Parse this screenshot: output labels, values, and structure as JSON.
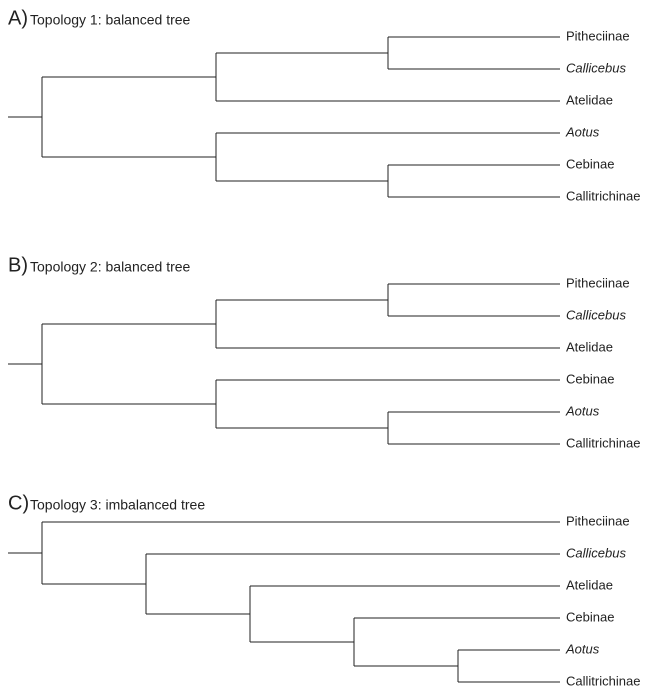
{
  "panels": [
    {
      "letter": "A)",
      "title": "Topology 1: balanced tree",
      "leaves": [
        {
          "label": "Pitheciinae"
        },
        {
          "label": "Callicebus",
          "italic": true
        },
        {
          "label": "Atelidae"
        },
        {
          "label": "Aotus",
          "italic": true
        },
        {
          "label": "Cebinae"
        },
        {
          "label": "Callitrichinae"
        }
      ]
    },
    {
      "letter": "B)",
      "title": "Topology 2: balanced tree",
      "leaves": [
        {
          "label": "Pitheciinae"
        },
        {
          "label": "Callicebus",
          "italic": true
        },
        {
          "label": "Atelidae"
        },
        {
          "label": "Cebinae"
        },
        {
          "label": "Aotus",
          "italic": true
        },
        {
          "label": "Callitrichinae"
        }
      ]
    },
    {
      "letter": "C)",
      "title": "Topology 3: imbalanced tree",
      "leaves": [
        {
          "label": "Pitheciinae"
        },
        {
          "label": "Callicebus",
          "italic": true
        },
        {
          "label": "Atelidae"
        },
        {
          "label": "Cebinae"
        },
        {
          "label": "Aotus",
          "italic": true
        },
        {
          "label": "Callitrichinae"
        }
      ]
    }
  ]
}
